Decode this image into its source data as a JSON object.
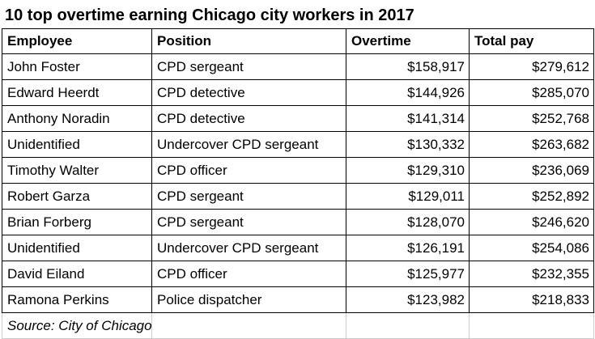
{
  "chart_data": {
    "type": "table",
    "title": "10 top overtime earning Chicago city workers in 2017",
    "columns": [
      "Employee",
      "Position",
      "Overtime",
      "Total pay"
    ],
    "rows": [
      [
        "John Foster",
        "CPD sergeant",
        "$158,917",
        "$279,612"
      ],
      [
        "Edward Heerdt",
        "CPD detective",
        "$144,926",
        "$285,070"
      ],
      [
        "Anthony Noradin",
        "CPD detective",
        "$141,314",
        "$252,768"
      ],
      [
        "Unidentified",
        "Undercover CPD sergeant",
        "$130,332",
        "$263,682"
      ],
      [
        "Timothy Walter",
        "CPD officer",
        "$129,310",
        "$236,069"
      ],
      [
        "Robert Garza",
        "CPD sergeant",
        "$129,011",
        "$252,892"
      ],
      [
        "Brian Forberg",
        "CPD sergeant",
        "$128,070",
        "$246,620"
      ],
      [
        "Unidentified",
        "Undercover CPD sergeant",
        "$126,191",
        "$254,086"
      ],
      [
        "David Eiland",
        "CPD officer",
        "$125,977",
        "$232,355"
      ],
      [
        "Ramona Perkins",
        "Police dispatcher",
        "$123,982",
        "$218,833"
      ]
    ],
    "source": "Source: City of Chicago"
  }
}
